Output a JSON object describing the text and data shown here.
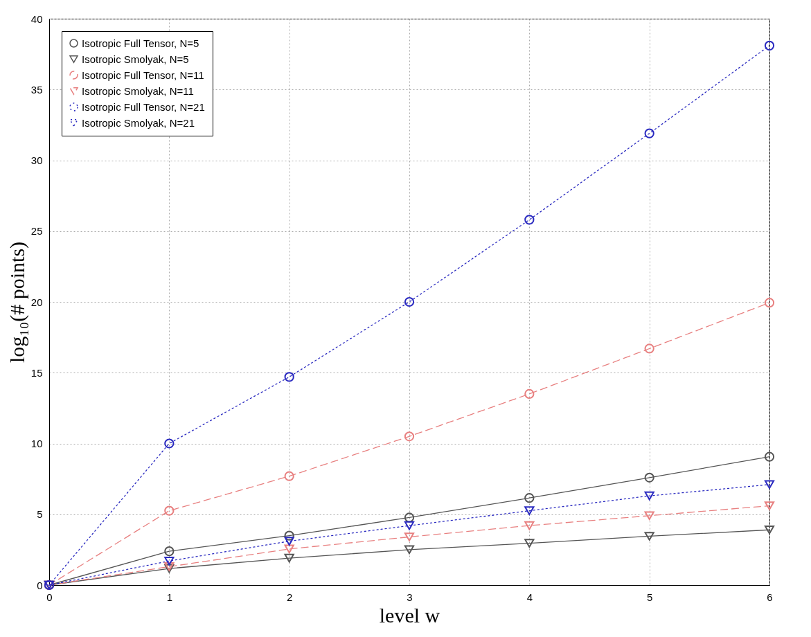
{
  "chart_data": {
    "type": "line",
    "xlabel": "level w",
    "ylabel": "log₁₀(# points)",
    "x": [
      0,
      1,
      2,
      3,
      4,
      5,
      6
    ],
    "series": [
      {
        "name": "Isotropic Full Tensor, N=5",
        "color": "#555555",
        "marker": "circle",
        "line_style": "solid",
        "values": [
          0,
          2.39,
          3.49,
          4.77,
          6.15,
          7.59,
          9.06
        ]
      },
      {
        "name": "Isotropic Smolyak, N=5",
        "color": "#555555",
        "marker": "triangle",
        "line_style": "solid",
        "values": [
          0,
          1.17,
          1.9,
          2.5,
          2.95,
          3.45,
          3.9
        ]
      },
      {
        "name": "Isotropic Full Tensor, N=11",
        "color": "#e88080",
        "marker": "circle",
        "line_style": "dashed",
        "values": [
          0,
          5.25,
          7.69,
          10.5,
          13.5,
          16.7,
          19.94
        ]
      },
      {
        "name": "Isotropic Smolyak, N=11",
        "color": "#e88080",
        "marker": "triangle",
        "line_style": "dashed",
        "values": [
          0,
          1.3,
          2.55,
          3.4,
          4.2,
          4.9,
          5.6
        ]
      },
      {
        "name": "Isotropic Full Tensor, N=21",
        "color": "#2a2ac0",
        "marker": "circle",
        "line_style": "dotted",
        "values": [
          0,
          10.0,
          14.7,
          20.0,
          25.8,
          31.9,
          38.1
        ]
      },
      {
        "name": "Isotropic Smolyak, N=21",
        "color": "#2a2ac0",
        "marker": "triangle",
        "line_style": "dotted",
        "values": [
          0,
          1.7,
          3.1,
          4.2,
          5.25,
          6.3,
          7.1
        ]
      }
    ],
    "xlim": [
      0,
      6
    ],
    "xticks": [
      0,
      1,
      2,
      3,
      4,
      5,
      6
    ],
    "ylim": [
      0,
      40
    ],
    "yticks": [
      0,
      5,
      10,
      15,
      20,
      25,
      30,
      35,
      40
    ],
    "grid": true,
    "legend": "top left"
  }
}
